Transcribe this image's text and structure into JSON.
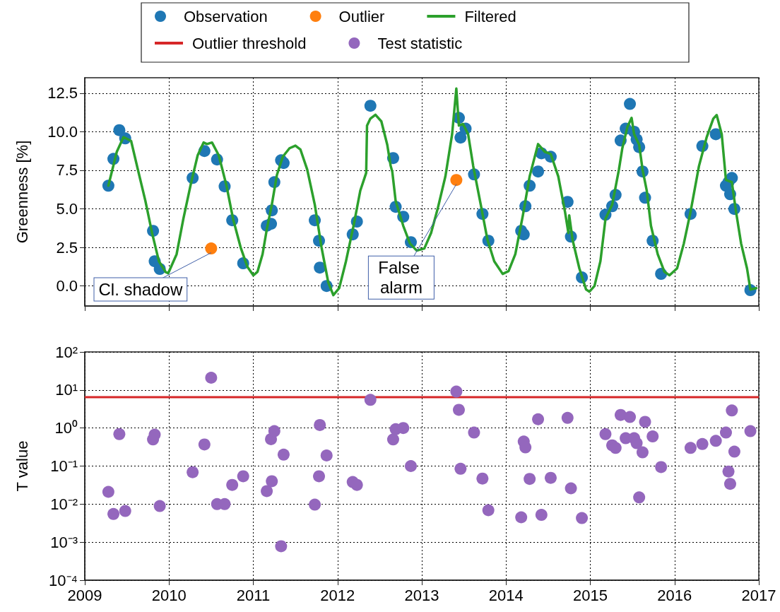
{
  "chart_data": [
    {
      "type": "scatter",
      "ylabel": "Greenness [%]",
      "xlim": [
        2009,
        2017
      ],
      "xticks": [
        2009,
        2010,
        2011,
        2012,
        2013,
        2014,
        2015,
        2016,
        2017
      ],
      "ylim": [
        -1.3,
        13.5
      ],
      "yticks": [
        {
          "value": 0,
          "label": "0.0"
        },
        2.5,
        {
          "value": 5,
          "label": "5.0"
        },
        7.5,
        {
          "value": 10,
          "label": "10.0"
        },
        12.5
      ],
      "tick_labels": "y",
      "grid": true,
      "legend": "top",
      "marker": "circle",
      "series": [
        {
          "name": "Observation",
          "color": "#1f77b4",
          "x": [
            2009.28,
            2009.34,
            2009.41,
            2009.48,
            2009.81,
            2009.83,
            2009.89,
            2010.28,
            2010.42,
            2010.57,
            2010.66,
            2010.75,
            2010.88,
            2011.16,
            2011.21,
            2011.22,
            2011.25,
            2011.33,
            2011.36,
            2011.73,
            2011.78,
            2011.79,
            2011.87,
            2012.18,
            2012.23,
            2012.39,
            2012.66,
            2012.69,
            2012.78,
            2012.87,
            2013.44,
            2013.46,
            2013.52,
            2013.62,
            2013.72,
            2013.79,
            2014.18,
            2014.21,
            2014.23,
            2014.28,
            2014.38,
            2014.42,
            2014.53,
            2014.73,
            2014.77,
            2014.9,
            2015.18,
            2015.26,
            2015.3,
            2015.36,
            2015.42,
            2015.47,
            2015.52,
            2015.55,
            2015.58,
            2015.62,
            2015.65,
            2015.74,
            2015.84,
            2016.19,
            2016.33,
            2016.49,
            2016.61,
            2016.64,
            2016.66,
            2016.68,
            2016.71,
            2016.9
          ],
          "values": [
            6.5,
            8.24,
            10.1,
            9.57,
            3.57,
            1.6,
            1.1,
            7.0,
            8.75,
            8.2,
            6.46,
            4.26,
            1.47,
            3.9,
            4.03,
            4.9,
            6.73,
            8.15,
            7.97,
            4.26,
            2.93,
            1.19,
            0.0,
            3.34,
            4.17,
            11.68,
            8.29,
            5.13,
            4.49,
            2.84,
            10.9,
            9.62,
            10.2,
            7.23,
            4.67,
            2.93,
            3.57,
            3.34,
            5.17,
            6.5,
            7.42,
            8.6,
            8.38,
            5.45,
            3.2,
            0.55,
            4.62,
            5.17,
            5.9,
            9.43,
            10.2,
            11.8,
            10.0,
            9.5,
            9.0,
            7.42,
            5.72,
            2.93,
            0.78,
            4.67,
            9.07,
            9.84,
            6.5,
            6.73,
            5.95,
            7.0,
            4.99,
            -0.27
          ]
        },
        {
          "name": "Outlier",
          "color": "#ff7f0e",
          "x": [
            2010.5,
            2013.41
          ],
          "values": [
            2.43,
            6.87
          ]
        },
        {
          "name": "Filtered",
          "type": "line",
          "color": "#2ca02c",
          "marker": "none",
          "x": [
            2009.28,
            2009.38,
            2009.46,
            2009.55,
            2009.63,
            2009.72,
            2009.8,
            2009.88,
            2009.96,
            2009.99,
            2010.09,
            2010.17,
            2010.26,
            2010.34,
            2010.41,
            2010.45,
            2010.51,
            2010.59,
            2010.68,
            2010.76,
            2010.85,
            2010.93,
            2011.0,
            2011.05,
            2011.11,
            2011.16,
            2011.22,
            2011.28,
            2011.35,
            2011.43,
            2011.5,
            2011.56,
            2011.64,
            2011.73,
            2011.81,
            2011.89,
            2011.95,
            2012.02,
            2012.1,
            2012.19,
            2012.27,
            2012.34,
            2012.35,
            2012.39,
            2012.45,
            2012.52,
            2012.59,
            2012.63,
            2012.65,
            2012.69,
            2012.78,
            2012.86,
            2012.94,
            2013.03,
            2013.11,
            2013.19,
            2013.28,
            2013.36,
            2013.41,
            2013.44,
            2013.49,
            2013.55,
            2013.61,
            2013.7,
            2013.78,
            2013.86,
            2013.96,
            2014.03,
            2014.11,
            2014.2,
            2014.28,
            2014.38,
            2014.46,
            2014.53,
            2014.62,
            2014.7,
            2014.74,
            2014.75,
            2014.79,
            2014.87,
            2014.95,
            2014.99,
            2015.05,
            2015.12,
            2015.18,
            2015.26,
            2015.34,
            2015.38,
            2015.44,
            2015.49,
            2015.52,
            2015.58,
            2015.62,
            2015.67,
            2015.72,
            2015.8,
            2015.88,
            2015.94,
            2016.03,
            2016.11,
            2016.19,
            2016.29,
            2016.38,
            2016.46,
            2016.5,
            2016.56,
            2016.61,
            2016.68,
            2016.73,
            2016.79,
            2016.86,
            2016.9,
            2016.97
          ],
          "values": [
            6.5,
            8.7,
            9.65,
            9.4,
            7.55,
            5.5,
            3.4,
            1.6,
            0.9,
            0.82,
            2.06,
            4.35,
            6.64,
            8.47,
            9.3,
            9.2,
            9.3,
            8.47,
            6.55,
            4.35,
            2.5,
            1.24,
            0.69,
            0.92,
            2.06,
            3.66,
            5.27,
            7.19,
            8.38,
            8.93,
            9.1,
            8.84,
            7.55,
            5.27,
            2.5,
            0.23,
            -0.6,
            -0.14,
            1.6,
            3.9,
            6.18,
            7.33,
            10.4,
            10.85,
            11.1,
            10.67,
            9.16,
            7.8,
            7.4,
            5.5,
            3.9,
            2.75,
            2.29,
            2.43,
            3.43,
            5.04,
            7.1,
            9.84,
            12.8,
            10.4,
            10.5,
            9.84,
            7.78,
            5.27,
            2.98,
            1.6,
            0.78,
            0.96,
            2.06,
            4.58,
            7.1,
            9.2,
            8.7,
            8.56,
            7.1,
            4.8,
            3.43,
            4.58,
            2.98,
            1.14,
            -0.23,
            -0.37,
            0.0,
            1.6,
            4.35,
            5.27,
            7.55,
            8.93,
            10.3,
            10.9,
            9.84,
            9.16,
            7.55,
            6.18,
            3.9,
            2.06,
            0.92,
            0.69,
            1.14,
            2.75,
            4.81,
            7.78,
            9.62,
            10.85,
            11.08,
            9.84,
            6.87,
            6.73,
            4.81,
            2.75,
            1.14,
            -0.23,
            -0.14
          ]
        }
      ],
      "annotations": [
        {
          "text": "Cl. shadow",
          "x": 2010.5,
          "y": 2.43
        },
        {
          "text": "False alarm",
          "x": 2013.41,
          "y": 6.87
        }
      ]
    },
    {
      "type": "scatter",
      "ylabel": "T value",
      "log": "y",
      "xlim": [
        2009,
        2017
      ],
      "xticks": [
        2009,
        2010,
        2011,
        2012,
        2013,
        2014,
        2015,
        2016,
        2017
      ],
      "ylim": [
        0.0001,
        100
      ],
      "yticks": [
        {
          "value": 0.0001,
          "label": "10⁻⁴"
        },
        {
          "value": 0.001,
          "label": "10⁻³"
        },
        {
          "value": 0.01,
          "label": "10⁻²"
        },
        {
          "value": 0.1,
          "label": "10⁻¹"
        },
        {
          "value": 1,
          "label": "10⁰"
        },
        {
          "value": 10,
          "label": "10¹"
        },
        {
          "value": 100,
          "label": "10²"
        }
      ],
      "grid": true,
      "legend": "top",
      "marker": "circle",
      "ref_lines": [
        {
          "axis": "y",
          "value": 6.5,
          "label": "Outlier threshold",
          "color": "#d62728"
        }
      ],
      "series": [
        {
          "name": "Test statistic",
          "color": "#9467bd",
          "x": [
            2009.28,
            2009.34,
            2009.41,
            2009.48,
            2009.81,
            2009.83,
            2009.89,
            2010.28,
            2010.42,
            2010.5,
            2010.57,
            2010.66,
            2010.75,
            2010.88,
            2011.16,
            2011.21,
            2011.22,
            2011.25,
            2011.33,
            2011.36,
            2011.73,
            2011.78,
            2011.79,
            2011.87,
            2012.18,
            2012.23,
            2012.39,
            2012.66,
            2012.69,
            2012.78,
            2012.87,
            2013.41,
            2013.44,
            2013.46,
            2013.62,
            2013.72,
            2013.79,
            2014.18,
            2014.21,
            2014.23,
            2014.28,
            2014.38,
            2014.42,
            2014.53,
            2014.73,
            2014.77,
            2014.9,
            2015.18,
            2015.26,
            2015.3,
            2015.36,
            2015.42,
            2015.47,
            2015.52,
            2015.55,
            2015.58,
            2015.62,
            2015.65,
            2015.74,
            2015.84,
            2016.19,
            2016.33,
            2016.49,
            2016.61,
            2016.64,
            2016.66,
            2016.68,
            2016.71,
            2016.9
          ],
          "values": [
            0.021,
            0.0055,
            0.69,
            0.0066,
            0.5,
            0.67,
            0.0089,
            0.069,
            0.37,
            21,
            0.01,
            0.01,
            0.032,
            0.054,
            0.022,
            0.51,
            0.04,
            0.83,
            0.00078,
            0.2,
            0.0097,
            0.054,
            1.2,
            0.19,
            0.038,
            0.032,
            5.5,
            0.5,
            0.93,
            1.0,
            0.1,
            9.1,
            3.0,
            0.085,
            0.76,
            0.047,
            0.0069,
            0.0045,
            0.44,
            0.31,
            0.046,
            1.7,
            0.0052,
            0.049,
            1.85,
            0.026,
            0.0043,
            0.69,
            0.35,
            0.3,
            2.2,
            0.54,
            1.95,
            0.54,
            0.4,
            0.015,
            0.23,
            1.45,
            0.6,
            0.094,
            0.3,
            0.38,
            0.46,
            0.76,
            0.072,
            0.034,
            2.9,
            0.24,
            0.83
          ]
        }
      ]
    }
  ]
}
